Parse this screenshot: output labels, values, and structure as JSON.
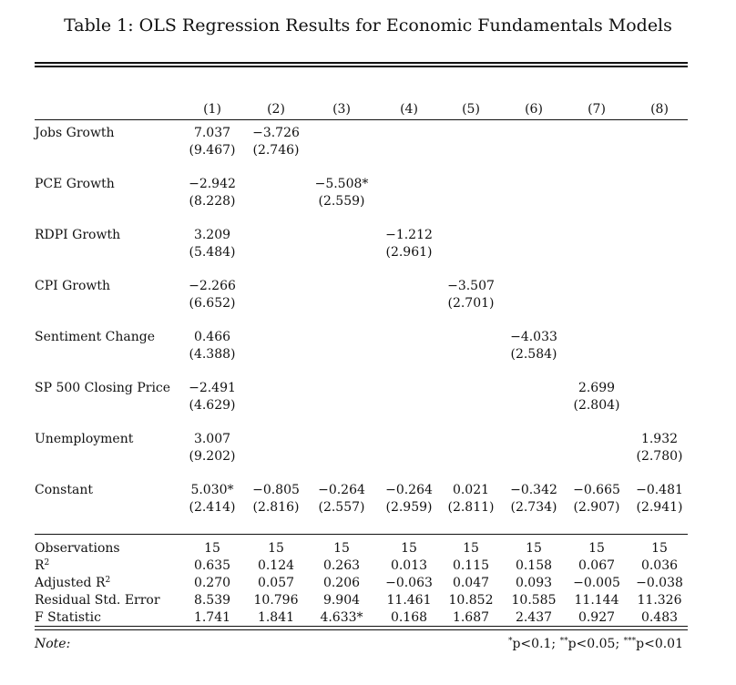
{
  "title": "Table 1: OLS Regression Results for Economic Fundamentals Models",
  "columns": [
    "(1)",
    "(2)",
    "(3)",
    "(4)",
    "(5)",
    "(6)",
    "(7)",
    "(8)"
  ],
  "coef_rows": [
    {
      "label": "Jobs Growth",
      "cells": [
        [
          "7.037",
          "(9.467)"
        ],
        [
          "−3.726",
          "(2.746)"
        ],
        null,
        null,
        null,
        null,
        null,
        null
      ]
    },
    {
      "label": "PCE Growth",
      "cells": [
        [
          "−2.942",
          "(8.228)"
        ],
        null,
        [
          "−5.508*",
          "(2.559)"
        ],
        null,
        null,
        null,
        null,
        null
      ]
    },
    {
      "label": "RDPI Growth",
      "cells": [
        [
          "3.209",
          "(5.484)"
        ],
        null,
        null,
        [
          "−1.212",
          "(2.961)"
        ],
        null,
        null,
        null,
        null
      ]
    },
    {
      "label": "CPI Growth",
      "cells": [
        [
          "−2.266",
          "(6.652)"
        ],
        null,
        null,
        null,
        [
          "−3.507",
          "(2.701)"
        ],
        null,
        null,
        null
      ]
    },
    {
      "label": "Sentiment Change",
      "cells": [
        [
          "0.466",
          "(4.388)"
        ],
        null,
        null,
        null,
        null,
        [
          "−4.033",
          "(2.584)"
        ],
        null,
        null
      ]
    },
    {
      "label": "SP 500 Closing Price",
      "cells": [
        [
          "−2.491",
          "(4.629)"
        ],
        null,
        null,
        null,
        null,
        null,
        [
          "2.699",
          "(2.804)"
        ],
        null
      ]
    },
    {
      "label": "Unemployment",
      "cells": [
        [
          "3.007",
          "(9.202)"
        ],
        null,
        null,
        null,
        null,
        null,
        null,
        [
          "1.932",
          "(2.780)"
        ]
      ]
    },
    {
      "label": "Constant",
      "cells": [
        [
          "5.030*",
          "(2.414)"
        ],
        [
          "−0.805",
          "(2.816)"
        ],
        [
          "−0.264",
          "(2.557)"
        ],
        [
          "−0.264",
          "(2.959)"
        ],
        [
          "0.021",
          "(2.811)"
        ],
        [
          "−0.342",
          "(2.734)"
        ],
        [
          "−0.665",
          "(2.907)"
        ],
        [
          "−0.481",
          "(2.941)"
        ]
      ]
    }
  ],
  "stat_rows": [
    {
      "label": "Observations",
      "values": [
        "15",
        "15",
        "15",
        "15",
        "15",
        "15",
        "15",
        "15"
      ]
    },
    {
      "label": "R",
      "sup": "2",
      "values": [
        "0.635",
        "0.124",
        "0.263",
        "0.013",
        "0.115",
        "0.158",
        "0.067",
        "0.036"
      ]
    },
    {
      "label": "Adjusted R",
      "sup": "2",
      "values": [
        "0.270",
        "0.057",
        "0.206",
        "−0.063",
        "0.047",
        "0.093",
        "−0.005",
        "−0.038"
      ]
    },
    {
      "label": "Residual Std. Error",
      "values": [
        "8.539",
        "10.796",
        "9.904",
        "11.461",
        "10.852",
        "10.585",
        "11.144",
        "11.326"
      ]
    },
    {
      "label": "F Statistic",
      "values": [
        "1.741",
        "1.841",
        "4.633*",
        "0.168",
        "1.687",
        "2.437",
        "0.927",
        "0.483"
      ]
    }
  ],
  "note": {
    "label": "Note:",
    "parts": [
      {
        "sup": "*",
        "text": "p<0.1; "
      },
      {
        "sup": "**",
        "text": "p<0.05; "
      },
      {
        "sup": "***",
        "text": "p<0.01"
      }
    ]
  }
}
